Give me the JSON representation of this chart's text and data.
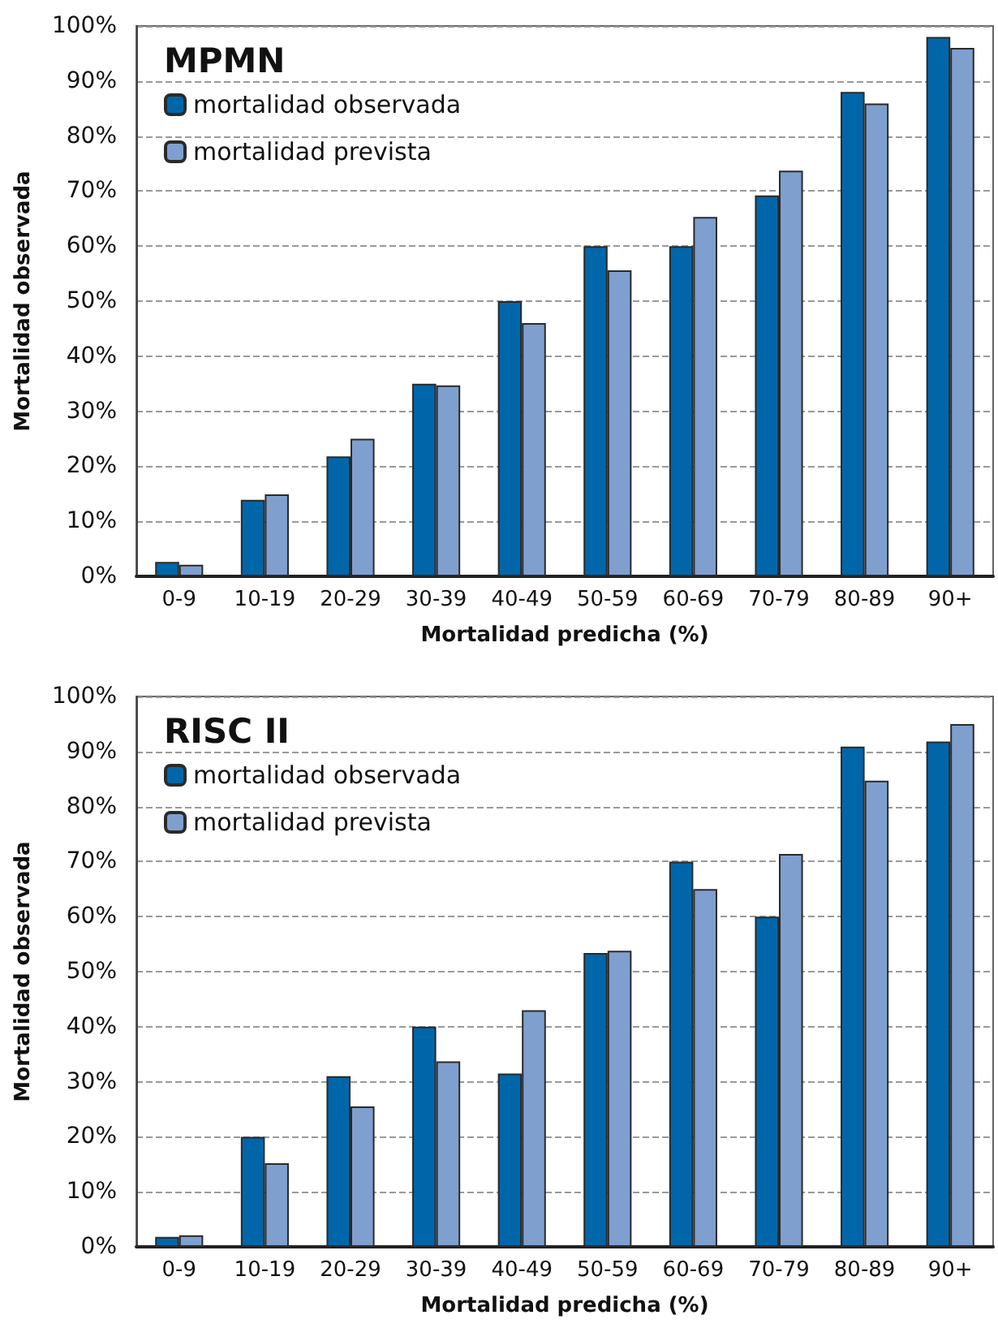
{
  "chart_data": [
    {
      "type": "bar",
      "title": "MPMN",
      "xlabel": "Mortalidad predicha (%)",
      "ylabel": "Mortalidad observada",
      "categories": [
        "0-9",
        "10-19",
        "20-29",
        "30-39",
        "40-49",
        "50-59",
        "60-69",
        "70-79",
        "80-89",
        "90+"
      ],
      "series": [
        {
          "name": "mortalidad observada",
          "color": "#0066aa",
          "values": [
            2.6,
            13.9,
            21.8,
            35,
            50,
            60,
            60,
            69.2,
            88,
            98
          ]
        },
        {
          "name": "mortalidad prevista",
          "color": "#7f9fcf",
          "values": [
            2.1,
            14.9,
            25,
            34.7,
            46,
            55.6,
            65.3,
            73.7,
            85.9,
            96
          ]
        }
      ],
      "ylim": [
        0,
        100
      ],
      "yticks": [
        {
          "value": 0,
          "label": "0%"
        },
        {
          "value": 10,
          "label": "10%"
        },
        {
          "value": 20,
          "label": "20%"
        },
        {
          "value": 30,
          "label": "30%"
        },
        {
          "value": 40,
          "label": "40%"
        },
        {
          "value": 50,
          "label": "50%"
        },
        {
          "value": 60,
          "label": "60%"
        },
        {
          "value": 70,
          "label": "70%"
        },
        {
          "value": 80,
          "label": "80%"
        },
        {
          "value": 90,
          "label": "90%"
        },
        {
          "value": 100,
          "label": "100%"
        }
      ],
      "grid": "y",
      "legend": "top left"
    },
    {
      "type": "bar",
      "title": "RISC II",
      "xlabel": "Mortalidad predicha (%)",
      "ylabel": "Mortalidad observada",
      "categories": [
        "0-9",
        "10-19",
        "20-29",
        "30-39",
        "40-49",
        "50-59",
        "60-69",
        "70-79",
        "80-89",
        "90+"
      ],
      "series": [
        {
          "name": "mortalidad observada",
          "color": "#0066aa",
          "values": [
            1.8,
            20,
            31,
            40,
            31.5,
            53.4,
            70,
            60,
            90.9,
            91.8
          ]
        },
        {
          "name": "mortalidad prevista",
          "color": "#7f9fcf",
          "values": [
            2.1,
            15.2,
            25.5,
            33.7,
            43,
            53.8,
            65,
            71.4,
            84.7,
            95
          ]
        }
      ],
      "ylim": [
        0,
        100
      ],
      "yticks": [
        {
          "value": 0,
          "label": "0%"
        },
        {
          "value": 10,
          "label": "10%"
        },
        {
          "value": 20,
          "label": "20%"
        },
        {
          "value": 30,
          "label": "30%"
        },
        {
          "value": 40,
          "label": "40%"
        },
        {
          "value": 50,
          "label": "50%"
        },
        {
          "value": 60,
          "label": "60%"
        },
        {
          "value": 70,
          "label": "70%"
        },
        {
          "value": 80,
          "label": "80%"
        },
        {
          "value": 90,
          "label": "90%"
        },
        {
          "value": 100,
          "label": "100%"
        }
      ],
      "grid": "y",
      "legend": "top left"
    }
  ]
}
